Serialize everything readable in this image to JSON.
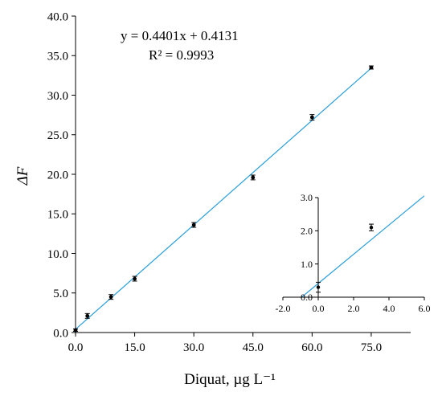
{
  "chart_data": [
    {
      "type": "scatter",
      "xlabel": "Diquat, µg L⁻¹",
      "ylabel": "ΔF",
      "xlim": [
        0,
        85
      ],
      "ylim": [
        0,
        40
      ],
      "xticks": [
        0,
        15,
        30,
        45,
        60,
        75
      ],
      "xtick_labels": [
        "0.0",
        "15.0",
        "30.0",
        "45.0",
        "60.0",
        "75.0"
      ],
      "yticks": [
        0,
        5,
        10,
        15,
        20,
        25,
        30,
        35,
        40
      ],
      "ytick_labels": [
        "0.0",
        "5.0",
        "10.0",
        "15.0",
        "20.0",
        "25.0",
        "30.0",
        "35.0",
        "40.0"
      ],
      "points": [
        {
          "x": 0,
          "y": 0.3,
          "err": 0.15
        },
        {
          "x": 3,
          "y": 2.1,
          "err": 0.3
        },
        {
          "x": 9,
          "y": 4.5,
          "err": 0.3
        },
        {
          "x": 15,
          "y": 6.8,
          "err": 0.3
        },
        {
          "x": 30,
          "y": 13.6,
          "err": 0.3
        },
        {
          "x": 45,
          "y": 19.6,
          "err": 0.3
        },
        {
          "x": 60,
          "y": 27.2,
          "err": 0.35
        },
        {
          "x": 75,
          "y": 33.5,
          "err": 0.2
        }
      ],
      "fit": {
        "slope": 0.4401,
        "intercept": 0.4131,
        "x_range": [
          0,
          75
        ]
      },
      "equation": "y = 0.4401x + 0.4131",
      "r_squared": "R² = 0.9993",
      "grid": false,
      "line_color": "#2a9fd8",
      "marker_color": "#000000"
    },
    {
      "type": "scatter",
      "title": "",
      "xlim": [
        -2,
        6
      ],
      "ylim": [
        0,
        3
      ],
      "xticks": [
        -2,
        0,
        2,
        4,
        6
      ],
      "xtick_labels": [
        "-2.0",
        "0.0",
        "2.0",
        "4.0",
        "6.0"
      ],
      "yticks": [
        0,
        1,
        2,
        3
      ],
      "ytick_labels": [
        "0.0",
        "1.0",
        "2.0",
        "3.0"
      ],
      "points": [
        {
          "x": 0,
          "y": 0.3,
          "err": 0.15
        },
        {
          "x": 3,
          "y": 2.1,
          "err": 0.1
        }
      ],
      "fit": {
        "slope": 0.4401,
        "intercept": 0.4131,
        "x_range": [
          -0.94,
          6
        ]
      },
      "grid": false,
      "line_color": "#2a9fd8",
      "marker_color": "#000000"
    }
  ]
}
